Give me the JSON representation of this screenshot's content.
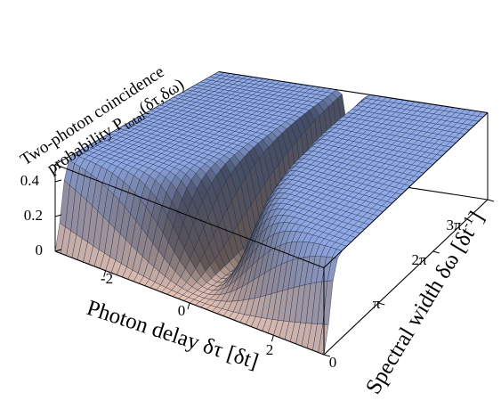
{
  "chart_data": {
    "type": "surface",
    "zlabel": {
      "line1": "Two-photon coincidence",
      "line2_prefix": "probability P",
      "line2_sub": "total",
      "line2_suffix": "(δτ,δω)"
    },
    "xlabel": {
      "prefix": "Photon delay δτ [δt]"
    },
    "ylabel": {
      "prefix": "Spectral width δω [δt",
      "sup": "-1",
      "suffix": "]"
    },
    "x_ticks": [
      "-2",
      "0",
      "2"
    ],
    "x_tick_values": [
      -2,
      0,
      2
    ],
    "y_ticks": [
      "0",
      "π",
      "2π",
      "3π"
    ],
    "y_tick_values": [
      0,
      3.14159,
      6.28319,
      9.42478
    ],
    "z_ticks": [
      "0",
      "0.2",
      "0.4"
    ],
    "z_tick_values": [
      0,
      0.2,
      0.4
    ],
    "xlim": [
      -3.2,
      3.2
    ],
    "ylim": [
      0,
      9.42478
    ],
    "zlim": [
      0,
      0.5
    ],
    "surface_formula": "P = 0.5 * (1 - exp(-(δτ*δω)^2 / 2))",
    "grid_resolution": [
      48,
      36
    ],
    "colors": {
      "high": "#8fa9e6",
      "low": "#e4c2b4",
      "mesh": "#1f2a44",
      "axes": "#000000"
    }
  }
}
